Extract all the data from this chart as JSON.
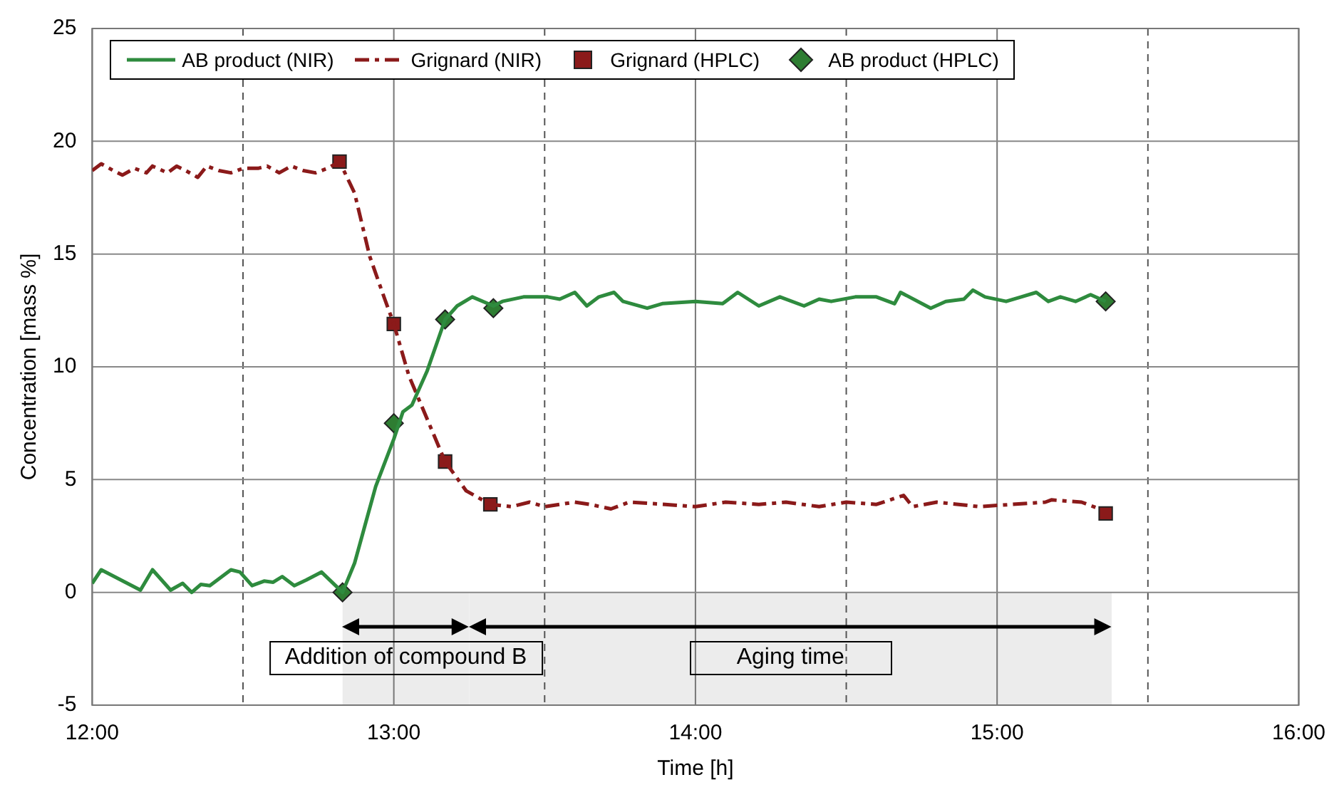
{
  "chart_data": {
    "type": "line",
    "xlabel": "Time [h]",
    "ylabel": "Concentration [mass %]",
    "xlim": [
      12,
      16
    ],
    "xticks": [
      {
        "value": 12,
        "label": "12:00"
      },
      {
        "value": 12.5,
        "label": null
      },
      {
        "value": 13,
        "label": "13:00"
      },
      {
        "value": 13.5,
        "label": null
      },
      {
        "value": 14,
        "label": "14:00"
      },
      {
        "value": 14.5,
        "label": null
      },
      {
        "value": 15,
        "label": "15:00"
      },
      {
        "value": 15.5,
        "label": null
      },
      {
        "value": 16,
        "label": "16:00"
      }
    ],
    "ylim": [
      -5,
      25
    ],
    "yticks": [
      -5,
      0,
      5,
      10,
      15,
      20,
      25
    ],
    "grid": true,
    "legend": "top",
    "bands": [
      {
        "axis": "x",
        "from": 12.83,
        "to": 13.25,
        "label": "Addition of compound B",
        "color": "#ececec"
      },
      {
        "axis": "x",
        "from": 13.25,
        "to": 15.38,
        "label": "Aging time",
        "color": "#ececec"
      }
    ],
    "series": [
      {
        "name": "AB product (NIR)",
        "type": "line",
        "color": "#2e8b3e",
        "line_style": "solid",
        "marker": "none",
        "x": [
          12.0,
          12.03,
          12.16,
          12.2,
          12.26,
          12.3,
          12.33,
          12.36,
          12.39,
          12.46,
          12.49,
          12.53,
          12.57,
          12.6,
          12.63,
          12.67,
          12.71,
          12.76,
          12.83,
          12.87,
          12.94,
          13.0,
          13.03,
          13.06,
          13.11,
          13.17,
          13.21,
          13.26,
          13.33,
          13.36,
          13.43,
          13.51,
          13.55,
          13.6,
          13.64,
          13.68,
          13.73,
          13.76,
          13.84,
          13.89,
          14.0,
          14.09,
          14.14,
          14.21,
          14.28,
          14.36,
          14.41,
          14.45,
          14.53,
          14.6,
          14.66,
          14.68,
          14.78,
          14.83,
          14.89,
          14.92,
          14.96,
          15.03,
          15.08,
          15.13,
          15.17,
          15.21,
          15.26,
          15.31,
          15.36
        ],
        "values": [
          0.4,
          1.0,
          0.1,
          1.0,
          0.1,
          0.4,
          0,
          0.35,
          0.3,
          1.0,
          0.9,
          0.3,
          0.5,
          0.45,
          0.7,
          0.3,
          0.55,
          0.9,
          0,
          1.3,
          4.7,
          6.8,
          8.0,
          8.3,
          9.8,
          12.1,
          12.7,
          13.1,
          12.7,
          12.9,
          13.1,
          13.1,
          13.0,
          13.3,
          12.7,
          13.1,
          13.3,
          12.9,
          12.6,
          12.8,
          12.9,
          12.8,
          13.3,
          12.7,
          13.1,
          12.7,
          13.0,
          12.9,
          13.1,
          13.1,
          12.8,
          13.3,
          12.6,
          12.9,
          13.0,
          13.4,
          13.1,
          12.9,
          13.1,
          13.3,
          12.9,
          13.1,
          12.9,
          13.2,
          12.9
        ]
      },
      {
        "name": "Grignard (NIR)",
        "type": "line",
        "color": "#8b1a1a",
        "line_style": "dashed",
        "marker": "none",
        "x": [
          12.0,
          12.03,
          12.07,
          12.1,
          12.14,
          12.18,
          12.2,
          12.25,
          12.28,
          12.31,
          12.35,
          12.38,
          12.42,
          12.46,
          12.5,
          12.55,
          12.58,
          12.62,
          12.66,
          12.7,
          12.74,
          12.78,
          12.82,
          12.87,
          12.92,
          12.97,
          13.0,
          13.05,
          13.11,
          13.17,
          13.24,
          13.32,
          13.39,
          13.45,
          13.5,
          13.6,
          13.65,
          13.72,
          13.78,
          13.9,
          14.0,
          14.1,
          14.21,
          14.3,
          14.41,
          14.5,
          14.6,
          14.69,
          14.72,
          14.8,
          14.94,
          15.05,
          15.16,
          15.18,
          15.28,
          15.34
        ],
        "values": [
          18.7,
          19.0,
          18.7,
          18.5,
          18.8,
          18.6,
          18.9,
          18.6,
          18.9,
          18.7,
          18.4,
          18.9,
          18.7,
          18.6,
          18.8,
          18.8,
          18.9,
          18.6,
          18.9,
          18.7,
          18.6,
          18.8,
          19.1,
          17.7,
          14.9,
          13.0,
          11.9,
          9.6,
          7.7,
          5.8,
          4.5,
          3.9,
          3.8,
          4.0,
          3.8,
          4.0,
          3.9,
          3.7,
          4.0,
          3.9,
          3.8,
          4.0,
          3.9,
          4.0,
          3.8,
          4.0,
          3.9,
          4.3,
          3.8,
          4.0,
          3.8,
          3.9,
          4.0,
          4.1,
          4.0,
          3.7
        ]
      },
      {
        "name": "Grignard (HPLC)",
        "type": "scatter",
        "color": "#8b1a1a",
        "marker": "square",
        "x": [
          12.82,
          13.0,
          13.17,
          13.32,
          15.36
        ],
        "values": [
          19.1,
          11.9,
          5.8,
          3.9,
          3.5
        ]
      },
      {
        "name": "AB product (HPLC)",
        "type": "scatter",
        "color": "#2e7d32",
        "marker": "diamond",
        "x": [
          12.83,
          13.0,
          13.17,
          13.33,
          15.36
        ],
        "values": [
          0,
          7.5,
          12.1,
          12.6,
          12.9
        ]
      }
    ]
  }
}
